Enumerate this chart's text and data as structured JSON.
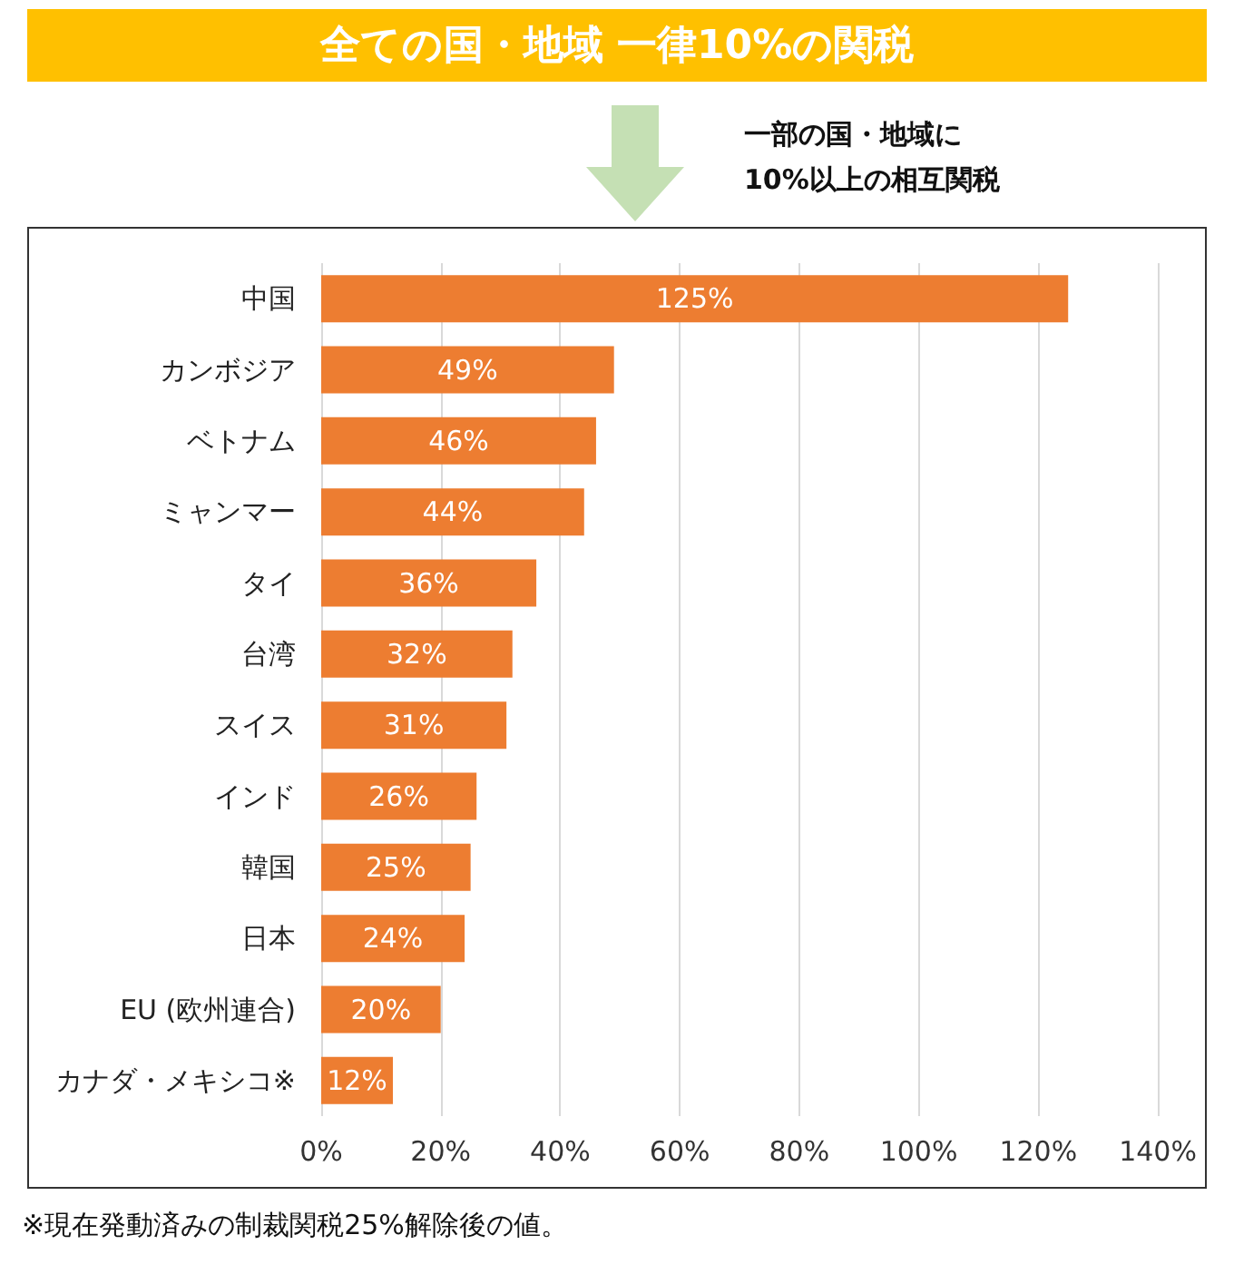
{
  "chart_data": {
    "type": "bar",
    "orientation": "horizontal",
    "title": "全ての国・地域 一律10%の関税",
    "annotations": [
      "一部の国・地域に\n10%以上の相互関税",
      "※現在発動済みの制裁関税25%解除後の値。"
    ],
    "categories": [
      "中国",
      "カンボジア",
      "ベトナム",
      "ミャンマー",
      "タイ",
      "台湾",
      "スイス",
      "インド",
      "韓国",
      "日本",
      "EU (欧州連合)",
      "カナダ・メキシコ※"
    ],
    "values": [
      125,
      49,
      46,
      44,
      36,
      32,
      31,
      26,
      25,
      24,
      20,
      12
    ],
    "value_labels": [
      "125%",
      "49%",
      "46%",
      "44%",
      "36%",
      "32%",
      "31%",
      "26%",
      "25%",
      "24%",
      "20%",
      "12%"
    ],
    "color": "#ed7d31",
    "xlim": [
      0,
      140
    ],
    "xticks": [
      {
        "value": 0,
        "label": "0%"
      },
      {
        "value": 20,
        "label": "20%"
      },
      {
        "value": 40,
        "label": "40%"
      },
      {
        "value": 60,
        "label": "60%"
      },
      {
        "value": 80,
        "label": "80%"
      },
      {
        "value": 100,
        "label": "100%"
      },
      {
        "value": 120,
        "label": "120%"
      },
      {
        "value": 140,
        "label": "140%"
      }
    ],
    "grid": "x"
  }
}
